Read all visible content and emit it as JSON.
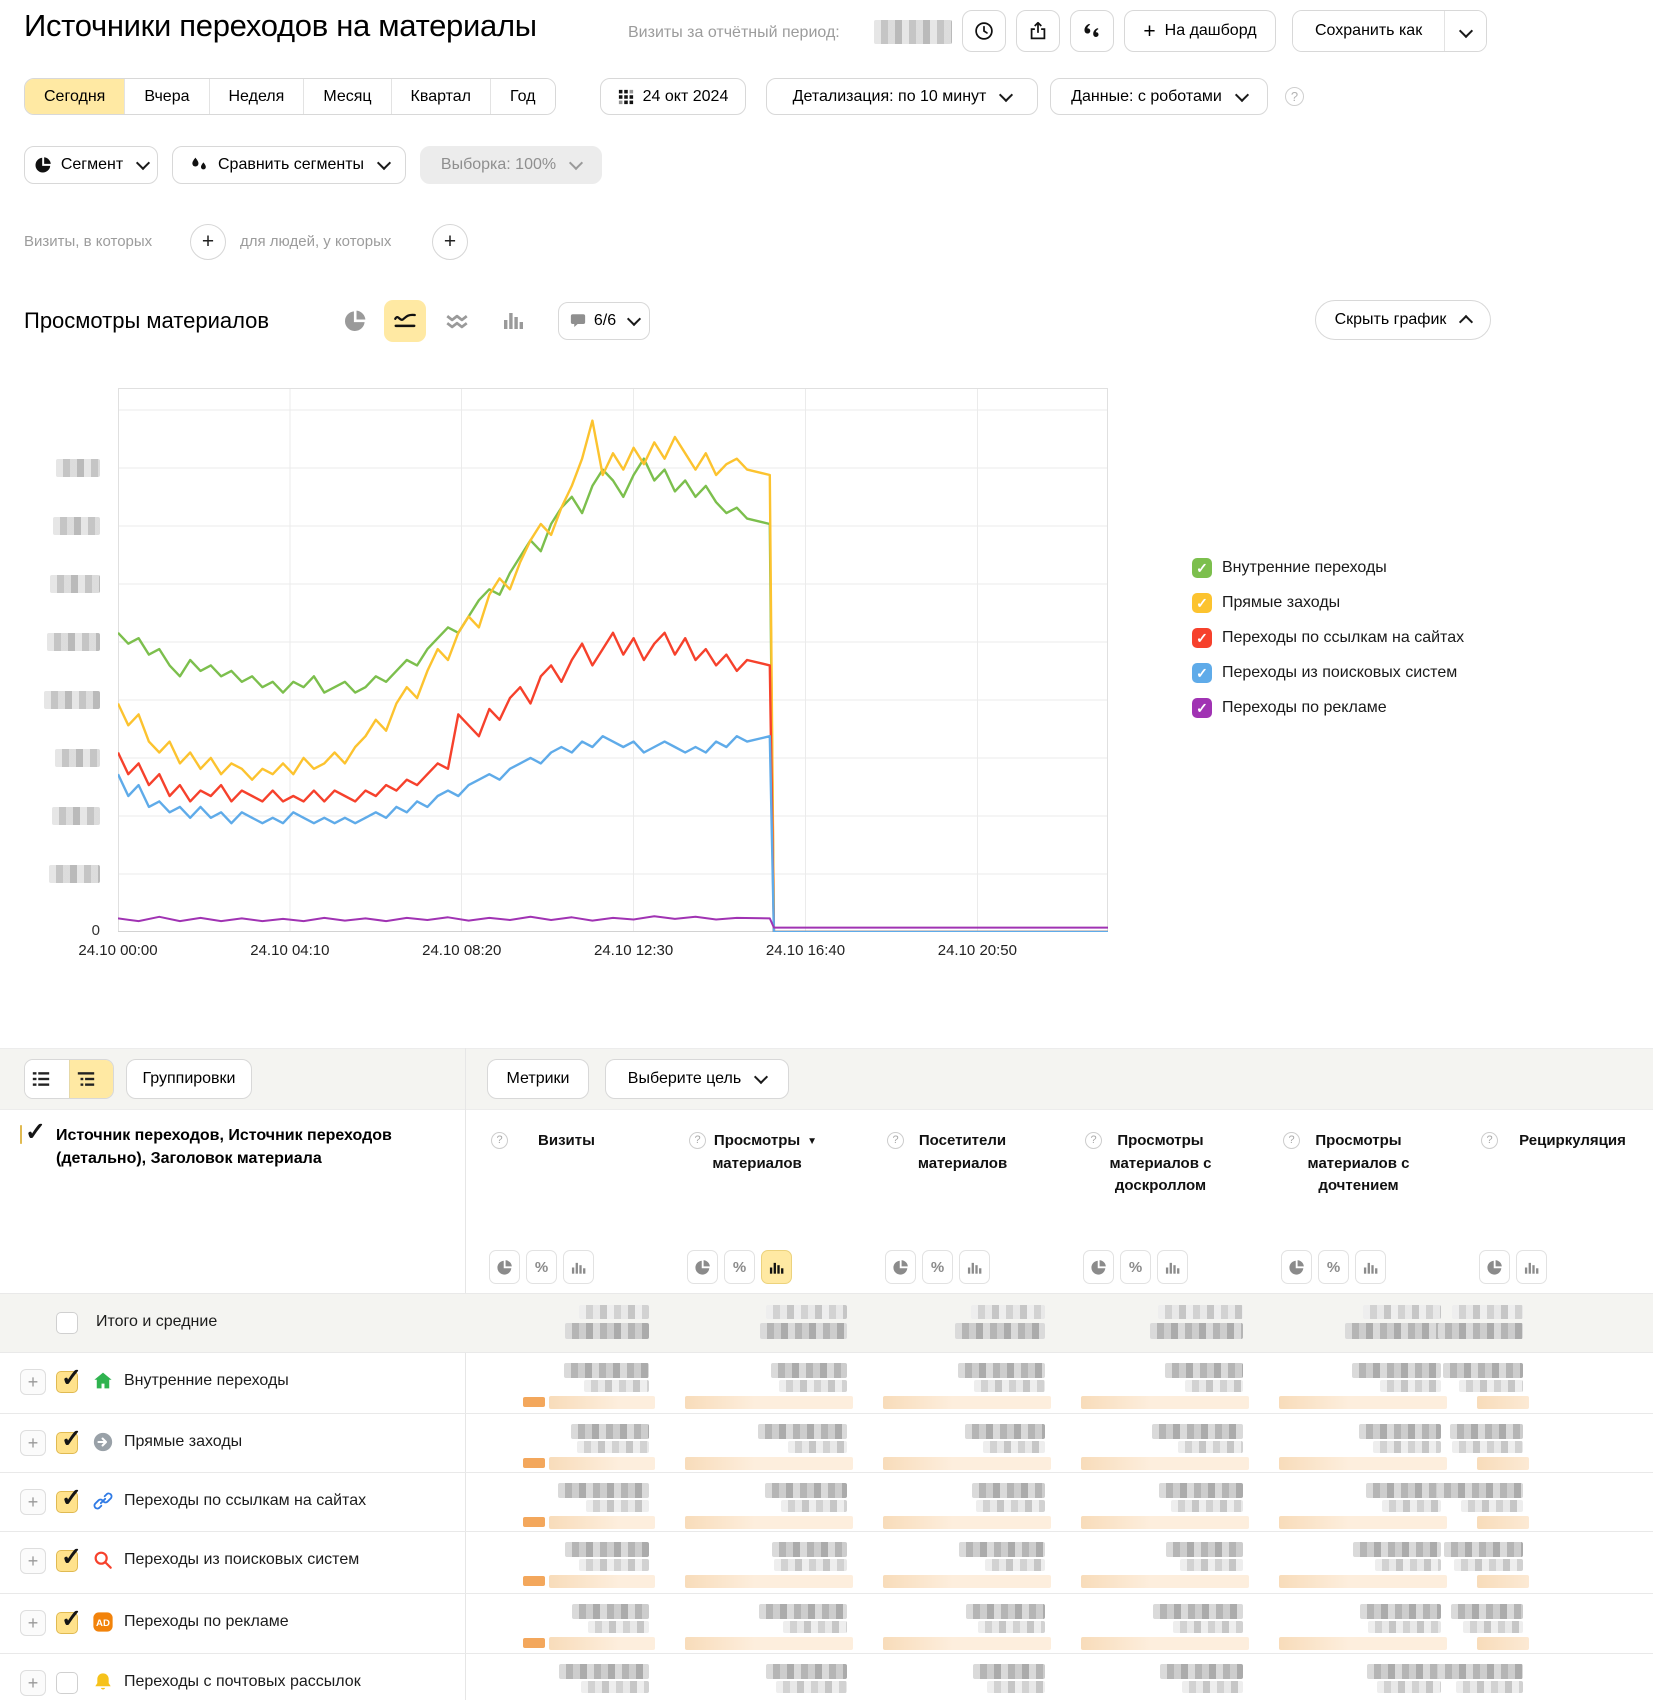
{
  "header": {
    "title": "Источники переходов на материалы",
    "visits_period_label": "Визиты за отчётный период:",
    "dashboard_button": "На дашборд",
    "save_button": "Сохранить как"
  },
  "period_bar": {
    "tabs": [
      {
        "label": "Сегодня",
        "active": true
      },
      {
        "label": "Вчера",
        "active": false
      },
      {
        "label": "Неделя",
        "active": false
      },
      {
        "label": "Месяц",
        "active": false
      },
      {
        "label": "Квартал",
        "active": false
      },
      {
        "label": "Год",
        "active": false
      }
    ],
    "date": "24 окт 2024",
    "detalization": "Детализация: по 10 минут",
    "data_mode": "Данные: с роботами"
  },
  "segment_bar": {
    "segment_button": "Сегмент",
    "compare_button": "Сравнить сегменты",
    "sample_button": "Выборка: 100%"
  },
  "filter_bar": {
    "visits_condition_label": "Визиты, в которых",
    "people_condition_label": "для людей, у которых"
  },
  "chart_section": {
    "title": "Просмотры материалов",
    "annotations_label": "6/6",
    "hide_chart_button": "Скрыть график"
  },
  "chart_data": {
    "type": "line",
    "title": "Просмотры материалов",
    "x_axis": {
      "tick_labels": [
        "24.10 00:00",
        "24.10 04:10",
        "24.10 08:20",
        "24.10 12:30",
        "24.10 16:40",
        "24.10 20:50"
      ],
      "tick_hours": [
        0,
        4.1667,
        8.3333,
        12.5,
        16.6667,
        20.8333
      ],
      "range_hours": [
        0,
        24
      ]
    },
    "y_axis": {
      "zero_label": "0",
      "blurred_tick_count": 8
    },
    "ylim": [
      0,
      100
    ],
    "legend_position": "right",
    "series": [
      {
        "name": "Внутренние переходы",
        "color": "#7cbf4d",
        "step": 0.25,
        "values": [
          55,
          53,
          54,
          51,
          52,
          49,
          47,
          50,
          48,
          49,
          47,
          48,
          46,
          47,
          45,
          46,
          44,
          46,
          45,
          47,
          44,
          45,
          46,
          44,
          45,
          47,
          46,
          48,
          50,
          49,
          52,
          54,
          56,
          55,
          58,
          61,
          63,
          62,
          66,
          69,
          72,
          70,
          75,
          78,
          80,
          77,
          82,
          85,
          83,
          80,
          84,
          87,
          83,
          85,
          81,
          83,
          80,
          82,
          79,
          77,
          78,
          76
        ],
        "tail": [
          [
            15.8,
            75
          ],
          [
            15.9,
            0
          ],
          [
            24,
            0
          ]
        ]
      },
      {
        "name": "Прямые заходы",
        "color": "#fcc32f",
        "step": 0.25,
        "values": [
          42,
          38,
          40,
          35,
          33,
          35,
          31,
          33,
          30,
          32,
          29,
          31,
          30,
          28,
          30,
          29,
          31,
          29,
          32,
          30,
          31,
          33,
          31,
          34,
          36,
          39,
          37,
          42,
          45,
          43,
          48,
          52,
          50,
          55,
          58,
          56,
          62,
          65,
          63,
          68,
          72,
          75,
          73,
          78,
          82,
          87,
          94,
          84,
          88,
          85,
          89,
          86,
          90,
          87,
          91,
          88,
          85,
          88,
          84,
          86,
          87,
          85
        ],
        "tail": [
          [
            15.8,
            84
          ],
          [
            15.9,
            0
          ],
          [
            24,
            0
          ]
        ]
      },
      {
        "name": "Переходы по ссылкам на сайтах",
        "color": "#f6412c",
        "step": 0.25,
        "values": [
          33,
          29,
          31,
          27,
          29,
          25,
          27,
          24,
          26,
          25,
          27,
          24,
          26,
          25,
          24,
          26,
          24,
          25,
          24,
          26,
          24,
          26,
          25,
          24,
          26,
          25,
          27,
          26,
          28,
          27,
          29,
          31,
          30,
          40,
          38,
          36,
          41,
          39,
          43,
          45,
          42,
          47,
          49,
          46,
          50,
          53,
          49,
          52,
          55,
          51,
          54,
          50,
          53,
          55,
          51,
          54,
          50,
          52,
          49,
          51,
          48,
          50
        ],
        "tail": [
          [
            15.8,
            49
          ],
          [
            15.9,
            0
          ],
          [
            24,
            0
          ]
        ]
      },
      {
        "name": "Переходы из поисковых систем",
        "color": "#5fabe9",
        "step": 0.25,
        "values": [
          29,
          25,
          27,
          23,
          24,
          22,
          23,
          21,
          23,
          21,
          22,
          20,
          22,
          21,
          20,
          21,
          20,
          22,
          21,
          20,
          21,
          20,
          21,
          20,
          21,
          22,
          21,
          23,
          22,
          24,
          23,
          25,
          26,
          25,
          27,
          28,
          29,
          28,
          30,
          31,
          32,
          31,
          33,
          34,
          33,
          35,
          34,
          36,
          35,
          34,
          35,
          33,
          34,
          35,
          34,
          33,
          34,
          33,
          35,
          34,
          36,
          35
        ],
        "tail": [
          [
            15.8,
            36
          ],
          [
            15.9,
            0
          ],
          [
            24,
            0
          ]
        ]
      },
      {
        "name": "Переходы по рекламе",
        "color": "#a033b3",
        "step": 0.5,
        "values": [
          2.5,
          2,
          2.8,
          2,
          2.6,
          2,
          2.5,
          2,
          2.4,
          2,
          2.6,
          2.1,
          2.5,
          2,
          2.6,
          2.2,
          2.7,
          2.1,
          2.6,
          2.2,
          2.8,
          2.2,
          2.7,
          2.1,
          2.6,
          2.3,
          2.9,
          2.4,
          2.8,
          2.3,
          2.6
        ],
        "tail": [
          [
            15.8,
            2.5
          ],
          [
            15.9,
            0.8
          ],
          [
            24,
            0.8
          ]
        ]
      }
    ]
  },
  "table": {
    "toolbar": {
      "groupings_button": "Группировки",
      "metrics_button": "Метрики",
      "goal_select": "Выберите цель"
    },
    "dimension_header": "Источник переходов, Источник переходов (детально), Заголовок материала",
    "columns": [
      {
        "label": "Визиты",
        "sorted": false,
        "toggles": [
          "pie",
          "percent",
          "bars"
        ],
        "active_toggle": ""
      },
      {
        "label": "Просмотры материалов",
        "sorted": true,
        "toggles": [
          "pie",
          "percent",
          "bars"
        ],
        "active_toggle": "bars"
      },
      {
        "label": "Посетители материалов",
        "sorted": false,
        "toggles": [
          "pie",
          "percent",
          "bars"
        ],
        "active_toggle": ""
      },
      {
        "label": "Просмотры материалов с доскроллом",
        "sorted": false,
        "toggles": [
          "pie",
          "percent",
          "bars"
        ],
        "active_toggle": ""
      },
      {
        "label": "Просмотры материалов с дочтением",
        "sorted": false,
        "toggles": [
          "pie",
          "percent",
          "bars"
        ],
        "active_toggle": ""
      },
      {
        "label": "Рециркуляция",
        "sorted": false,
        "toggles": [
          "pie",
          "bars"
        ],
        "active_toggle": ""
      }
    ],
    "rows": [
      {
        "label": "Итого и средние",
        "type": "total",
        "icon": "",
        "checked": false
      },
      {
        "label": "Внутренние переходы",
        "type": "data",
        "icon": "home-icon",
        "checked": true
      },
      {
        "label": "Прямые заходы",
        "type": "data",
        "icon": "direct-arrow-icon",
        "checked": true
      },
      {
        "label": "Переходы по ссылкам на сайтах",
        "type": "data",
        "icon": "link-icon",
        "checked": true
      },
      {
        "label": "Переходы из поисковых систем",
        "type": "data",
        "icon": "search-icon",
        "checked": true
      },
      {
        "label": "Переходы по рекламе",
        "type": "data",
        "icon": "ad-icon",
        "checked": true
      },
      {
        "label": "Переходы с почтовых рассылок",
        "type": "data",
        "icon": "bell-icon",
        "checked": false
      }
    ]
  }
}
